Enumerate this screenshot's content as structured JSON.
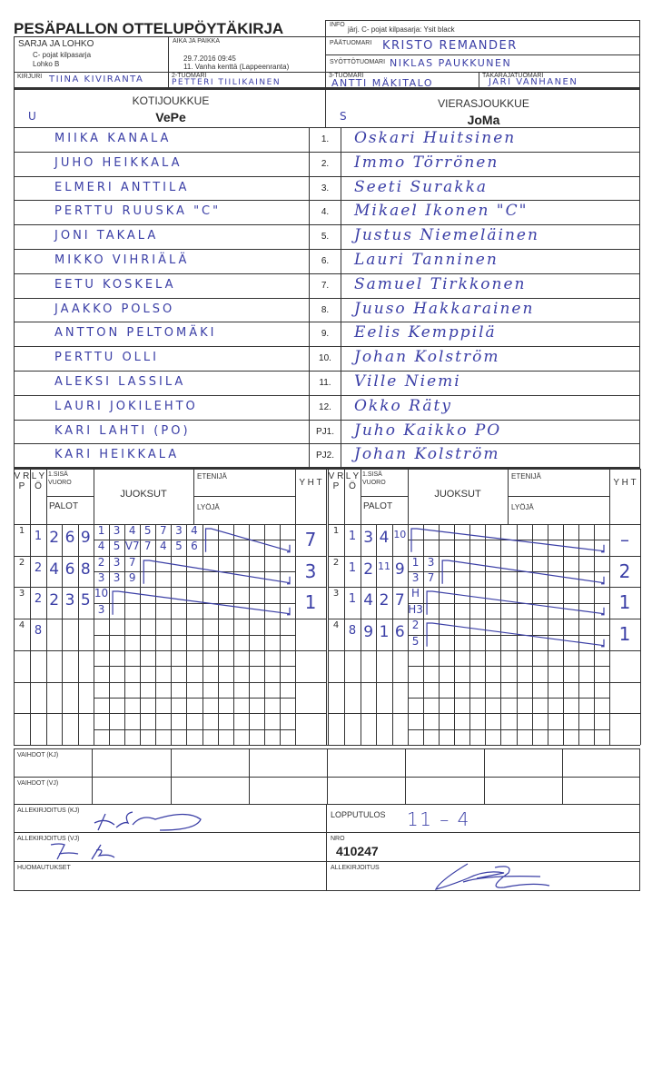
{
  "title": "PESÄPALLON OTTELUPÖYTÄKIRJA",
  "info": {
    "label": "INFO",
    "value": "järj. C- pojat kilpasarja: Ysit black"
  },
  "sarja": {
    "label": "SARJA JA LOHKO",
    "line1": "C- pojat kilpasarja",
    "line2": "Lohko B"
  },
  "aika": {
    "label": "AIKA JA PAIKKA",
    "line1": "29.7.2016 09:45",
    "line2": "11. Vanha kenttä (Lappeenranta)"
  },
  "paatuomari": {
    "label": "PÄÄTUOMARI",
    "value": "KRISTO REMANDER"
  },
  "syottotuomari": {
    "label": "SYÖTTÖTUOMARI",
    "value": "NIKLAS PAUKKUNEN"
  },
  "kirjuri": {
    "label": "KIRJURI",
    "value": "TIINA KIVIRANTA"
  },
  "tuomari2": {
    "label": "2-TUOMARI",
    "value": "PETTERI TIILIKAINEN"
  },
  "tuomari3": {
    "label": "3-TUOMARI",
    "value": "ANTTI MÄKITALO"
  },
  "takaraja": {
    "label": "TAKARAJATUOMARI",
    "value": "JARI VANHANEN"
  },
  "home": {
    "label": "KOTIJOUKKUE",
    "name": "VePe",
    "mark": "U",
    "players": [
      "MIIKA KANALA",
      "JUHO HEIKKALA",
      "ELMERI ANTTILA",
      "PERTTU RUUSKA \"C\"",
      "JONI TAKALA",
      "MIKKO VIHRIÄLÄ",
      "EETU KOSKELA",
      "JAAKKO POLSO",
      "ANTTON PELTOMÄKI",
      "PERTTU OLLI",
      "ALEKSI LASSILA",
      "LAURI JOKILEHTO",
      "KARI LAHTI (PO)",
      "KARI HEIKKALA"
    ]
  },
  "away": {
    "label": "VIERASJOUKKUE",
    "name": "JoMa",
    "mark": "S",
    "players": [
      "Oskari Huitsinen",
      "Immo Törrönen",
      "Seeti Surakka",
      "Mikael Ikonen \"C\"",
      "Justus Niemeläinen",
      "Lauri Tanninen",
      "Samuel Tirkkonen",
      "Juuso Hakkarainen",
      "Eelis Kemppilä",
      "Johan Kolström",
      "Ville Niemi",
      "Okko Räty",
      "Juho Kaikko PO",
      "Johan Kolström"
    ]
  },
  "numbers": [
    "1.",
    "2.",
    "3.",
    "4.",
    "5.",
    "6.",
    "7.",
    "8.",
    "9.",
    "10.",
    "11.",
    "12.",
    "PJ1.",
    "PJ2."
  ],
  "score_header": {
    "vrp": "V R P",
    "lyo": "L Y Ö",
    "sisa": "1.SISÄ VUORO",
    "palot": "PALOT",
    "juoksut": "JUOKSUT",
    "etenija": "ETENIJÄ",
    "lyoja": "LYÖJÄ",
    "yht": "Y H T"
  },
  "home_innings": [
    {
      "vrp": "1",
      "lyo": "1",
      "palot": [
        "2",
        "6",
        "9"
      ],
      "top": [
        "1",
        "3",
        "4",
        "5",
        "7",
        "3",
        "4"
      ],
      "bottom": [
        "4",
        "5",
        "V7",
        "7",
        "4",
        "5",
        "6"
      ],
      "yht": "7"
    },
    {
      "vrp": "2",
      "lyo": "2",
      "palot": [
        "4",
        "6",
        "8"
      ],
      "top": [
        "2",
        "3",
        "7"
      ],
      "bottom": [
        "3",
        "3",
        "9"
      ],
      "yht": "3"
    },
    {
      "vrp": "3",
      "lyo": "2",
      "palot": [
        "2",
        "3",
        "5"
      ],
      "top": [
        "10"
      ],
      "bottom": [
        "3"
      ],
      "yht": "1"
    },
    {
      "vrp": "4",
      "lyo": "8",
      "palot": [],
      "top": [],
      "bottom": [],
      "yht": ""
    }
  ],
  "away_innings": [
    {
      "vrp": "1",
      "lyo": "1",
      "palot": [
        "3",
        "4",
        "10"
      ],
      "top": [],
      "bottom": [],
      "yht": "–"
    },
    {
      "vrp": "2",
      "lyo": "1",
      "palot": [
        "2",
        "11",
        "9"
      ],
      "top": [
        "1",
        "3"
      ],
      "bottom": [
        "3",
        "7"
      ],
      "yht": "2"
    },
    {
      "vrp": "3",
      "lyo": "1",
      "palot": [
        "4",
        "2",
        "7"
      ],
      "top": [
        "H"
      ],
      "bottom": [
        "H3"
      ],
      "yht": "1"
    },
    {
      "vrp": "4",
      "lyo": "8",
      "palot": [
        "9",
        "1",
        "6"
      ],
      "top": [
        "2"
      ],
      "bottom": [
        "5"
      ],
      "yht": "1"
    }
  ],
  "footer": {
    "vaihdot_kj": "VAIHDOT (KJ)",
    "vaihdot_vj": "VAIHDOT (VJ)",
    "allek_kj": "ALLEKIRJOITUS (KJ)",
    "allek_vj": "ALLEKIRJOITUS (VJ)",
    "huomautukset": "HUOMAUTUKSET",
    "lopputulos_label": "LOPPUTULOS",
    "lopputulos": "11 – 4",
    "nro_label": "NRO",
    "nro": "410247",
    "allek": "ALLEKIRJOITUS"
  },
  "colors": {
    "ink": "#3b3fa6",
    "lines": "#333333"
  }
}
